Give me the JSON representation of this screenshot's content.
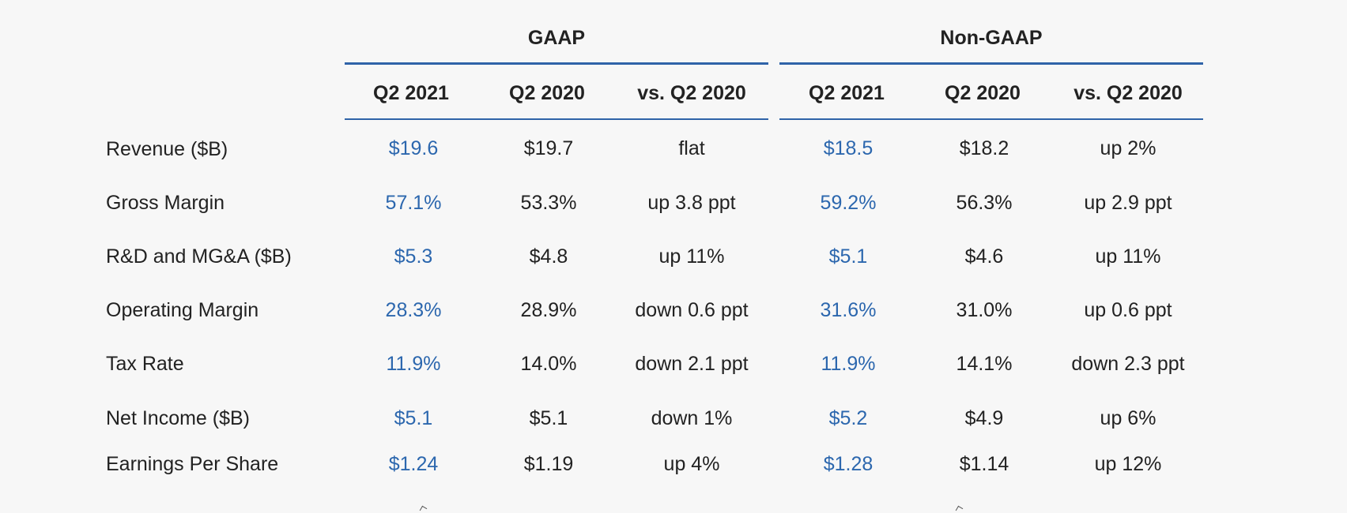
{
  "groups": {
    "gaap": "GAAP",
    "nongaap": "Non-GAAP"
  },
  "columns": {
    "gaap": [
      "Q2 2021",
      "Q2 2020",
      "vs. Q2 2020"
    ],
    "nongaap": [
      "Q2 2021",
      "Q2 2020",
      "vs. Q2 2020"
    ]
  },
  "rows": [
    {
      "label": "Revenue ($B)",
      "gaap": [
        "$19.6",
        "$19.7",
        "flat"
      ],
      "nongaap": [
        "$18.5",
        "$18.2",
        "up 2%"
      ]
    },
    {
      "label": "Gross Margin",
      "gaap": [
        "57.1%",
        "53.3%",
        "up 3.8 ppt"
      ],
      "nongaap": [
        "59.2%",
        "56.3%",
        "up 2.9 ppt"
      ]
    },
    {
      "label": "R&D and MG&A ($B)",
      "gaap": [
        "$5.3",
        "$4.8",
        "up 11%"
      ],
      "nongaap": [
        "$5.1",
        "$4.6",
        "up 11%"
      ]
    },
    {
      "label": "Operating Margin",
      "gaap": [
        "28.3%",
        "28.9%",
        "down 0.6 ppt"
      ],
      "nongaap": [
        "31.6%",
        "31.0%",
        "up 0.6 ppt"
      ]
    },
    {
      "label": "Tax Rate",
      "gaap": [
        "11.9%",
        "14.0%",
        "down 2.1 ppt"
      ],
      "nongaap": [
        "11.9%",
        "14.1%",
        "down 2.3 ppt"
      ]
    },
    {
      "label": "Net Income ($B)",
      "gaap": [
        "$5.1",
        "$5.1",
        "down 1%"
      ],
      "nongaap": [
        "$5.2",
        "$4.9",
        "up 6%"
      ]
    },
    {
      "label": "Earnings Per Share",
      "gaap": [
        "$1.24",
        "$1.19",
        "up 4%"
      ],
      "nongaap": [
        "$1.28",
        "$1.14",
        "up 12%"
      ]
    }
  ],
  "colors": {
    "accent": "#2f63a8",
    "current_value": "#2c67ae",
    "text": "#222222",
    "background": "#f7f7f7"
  }
}
